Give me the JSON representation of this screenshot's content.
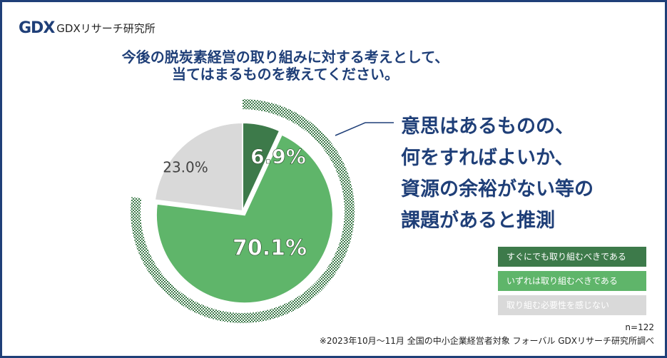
{
  "logo": {
    "mark": "GDX",
    "text": "GDXリサーチ研究所"
  },
  "title": {
    "line1": "今後の脱炭素経営の取り組みに対する考えとして、",
    "line2": "当てはまるものを教えてください。"
  },
  "callout": {
    "line1": "意思はあるものの、",
    "line2": "何をすればよいか、",
    "line3": "資源の余裕がない等の",
    "line4": "課題があると推測"
  },
  "chart_data": {
    "type": "pie",
    "categories": [
      "すぐにでも取り組むべきである",
      "いずれは取り組むべきである",
      "取り組む必要性を感じない"
    ],
    "values": [
      6.9,
      70.1,
      23.0
    ],
    "labels": [
      "6.9%",
      "70.1%",
      "23.0%"
    ],
    "colors": [
      "#3d7a4a",
      "#5fb56a",
      "#d9d9d9"
    ],
    "legend_position": "right"
  },
  "footnote": {
    "n": "n=122",
    "source": "※2023年10月～11月 全国の中小企業経営者対象 フォーバル GDXリサーチ研究所調べ"
  }
}
